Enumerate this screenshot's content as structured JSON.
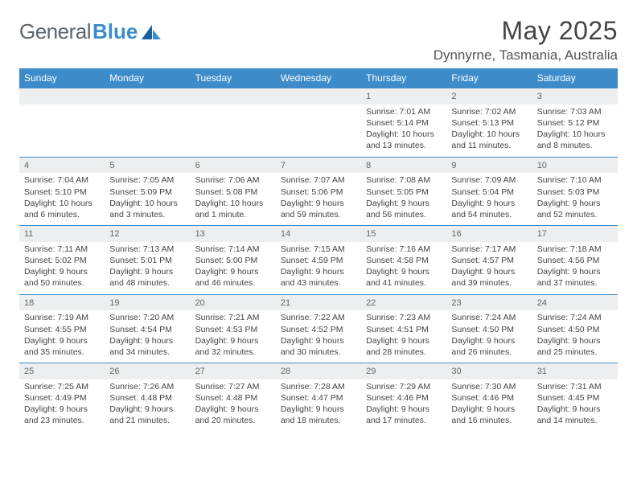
{
  "brand": {
    "part1": "General",
    "part2": "Blue"
  },
  "title": "May 2025",
  "location": "Dynnyrne, Tasmania, Australia",
  "colors": {
    "header_bg": "#3d8cc9",
    "header_text": "#ffffff",
    "daynum_bg": "#eceeef",
    "row_border": "#3d8cc9",
    "text": "#444444",
    "logo_gray": "#5a6570",
    "logo_blue": "#3d8cc9"
  },
  "day_headers": [
    "Sunday",
    "Monday",
    "Tuesday",
    "Wednesday",
    "Thursday",
    "Friday",
    "Saturday"
  ],
  "weeks": [
    [
      {
        "n": "",
        "sr": "",
        "ss": "",
        "dl": ""
      },
      {
        "n": "",
        "sr": "",
        "ss": "",
        "dl": ""
      },
      {
        "n": "",
        "sr": "",
        "ss": "",
        "dl": ""
      },
      {
        "n": "",
        "sr": "",
        "ss": "",
        "dl": ""
      },
      {
        "n": "1",
        "sr": "Sunrise: 7:01 AM",
        "ss": "Sunset: 5:14 PM",
        "dl": "Daylight: 10 hours and 13 minutes."
      },
      {
        "n": "2",
        "sr": "Sunrise: 7:02 AM",
        "ss": "Sunset: 5:13 PM",
        "dl": "Daylight: 10 hours and 11 minutes."
      },
      {
        "n": "3",
        "sr": "Sunrise: 7:03 AM",
        "ss": "Sunset: 5:12 PM",
        "dl": "Daylight: 10 hours and 8 minutes."
      }
    ],
    [
      {
        "n": "4",
        "sr": "Sunrise: 7:04 AM",
        "ss": "Sunset: 5:10 PM",
        "dl": "Daylight: 10 hours and 6 minutes."
      },
      {
        "n": "5",
        "sr": "Sunrise: 7:05 AM",
        "ss": "Sunset: 5:09 PM",
        "dl": "Daylight: 10 hours and 3 minutes."
      },
      {
        "n": "6",
        "sr": "Sunrise: 7:06 AM",
        "ss": "Sunset: 5:08 PM",
        "dl": "Daylight: 10 hours and 1 minute."
      },
      {
        "n": "7",
        "sr": "Sunrise: 7:07 AM",
        "ss": "Sunset: 5:06 PM",
        "dl": "Daylight: 9 hours and 59 minutes."
      },
      {
        "n": "8",
        "sr": "Sunrise: 7:08 AM",
        "ss": "Sunset: 5:05 PM",
        "dl": "Daylight: 9 hours and 56 minutes."
      },
      {
        "n": "9",
        "sr": "Sunrise: 7:09 AM",
        "ss": "Sunset: 5:04 PM",
        "dl": "Daylight: 9 hours and 54 minutes."
      },
      {
        "n": "10",
        "sr": "Sunrise: 7:10 AM",
        "ss": "Sunset: 5:03 PM",
        "dl": "Daylight: 9 hours and 52 minutes."
      }
    ],
    [
      {
        "n": "11",
        "sr": "Sunrise: 7:11 AM",
        "ss": "Sunset: 5:02 PM",
        "dl": "Daylight: 9 hours and 50 minutes."
      },
      {
        "n": "12",
        "sr": "Sunrise: 7:13 AM",
        "ss": "Sunset: 5:01 PM",
        "dl": "Daylight: 9 hours and 48 minutes."
      },
      {
        "n": "13",
        "sr": "Sunrise: 7:14 AM",
        "ss": "Sunset: 5:00 PM",
        "dl": "Daylight: 9 hours and 46 minutes."
      },
      {
        "n": "14",
        "sr": "Sunrise: 7:15 AM",
        "ss": "Sunset: 4:59 PM",
        "dl": "Daylight: 9 hours and 43 minutes."
      },
      {
        "n": "15",
        "sr": "Sunrise: 7:16 AM",
        "ss": "Sunset: 4:58 PM",
        "dl": "Daylight: 9 hours and 41 minutes."
      },
      {
        "n": "16",
        "sr": "Sunrise: 7:17 AM",
        "ss": "Sunset: 4:57 PM",
        "dl": "Daylight: 9 hours and 39 minutes."
      },
      {
        "n": "17",
        "sr": "Sunrise: 7:18 AM",
        "ss": "Sunset: 4:56 PM",
        "dl": "Daylight: 9 hours and 37 minutes."
      }
    ],
    [
      {
        "n": "18",
        "sr": "Sunrise: 7:19 AM",
        "ss": "Sunset: 4:55 PM",
        "dl": "Daylight: 9 hours and 35 minutes."
      },
      {
        "n": "19",
        "sr": "Sunrise: 7:20 AM",
        "ss": "Sunset: 4:54 PM",
        "dl": "Daylight: 9 hours and 34 minutes."
      },
      {
        "n": "20",
        "sr": "Sunrise: 7:21 AM",
        "ss": "Sunset: 4:53 PM",
        "dl": "Daylight: 9 hours and 32 minutes."
      },
      {
        "n": "21",
        "sr": "Sunrise: 7:22 AM",
        "ss": "Sunset: 4:52 PM",
        "dl": "Daylight: 9 hours and 30 minutes."
      },
      {
        "n": "22",
        "sr": "Sunrise: 7:23 AM",
        "ss": "Sunset: 4:51 PM",
        "dl": "Daylight: 9 hours and 28 minutes."
      },
      {
        "n": "23",
        "sr": "Sunrise: 7:24 AM",
        "ss": "Sunset: 4:50 PM",
        "dl": "Daylight: 9 hours and 26 minutes."
      },
      {
        "n": "24",
        "sr": "Sunrise: 7:24 AM",
        "ss": "Sunset: 4:50 PM",
        "dl": "Daylight: 9 hours and 25 minutes."
      }
    ],
    [
      {
        "n": "25",
        "sr": "Sunrise: 7:25 AM",
        "ss": "Sunset: 4:49 PM",
        "dl": "Daylight: 9 hours and 23 minutes."
      },
      {
        "n": "26",
        "sr": "Sunrise: 7:26 AM",
        "ss": "Sunset: 4:48 PM",
        "dl": "Daylight: 9 hours and 21 minutes."
      },
      {
        "n": "27",
        "sr": "Sunrise: 7:27 AM",
        "ss": "Sunset: 4:48 PM",
        "dl": "Daylight: 9 hours and 20 minutes."
      },
      {
        "n": "28",
        "sr": "Sunrise: 7:28 AM",
        "ss": "Sunset: 4:47 PM",
        "dl": "Daylight: 9 hours and 18 minutes."
      },
      {
        "n": "29",
        "sr": "Sunrise: 7:29 AM",
        "ss": "Sunset: 4:46 PM",
        "dl": "Daylight: 9 hours and 17 minutes."
      },
      {
        "n": "30",
        "sr": "Sunrise: 7:30 AM",
        "ss": "Sunset: 4:46 PM",
        "dl": "Daylight: 9 hours and 16 minutes."
      },
      {
        "n": "31",
        "sr": "Sunrise: 7:31 AM",
        "ss": "Sunset: 4:45 PM",
        "dl": "Daylight: 9 hours and 14 minutes."
      }
    ]
  ]
}
